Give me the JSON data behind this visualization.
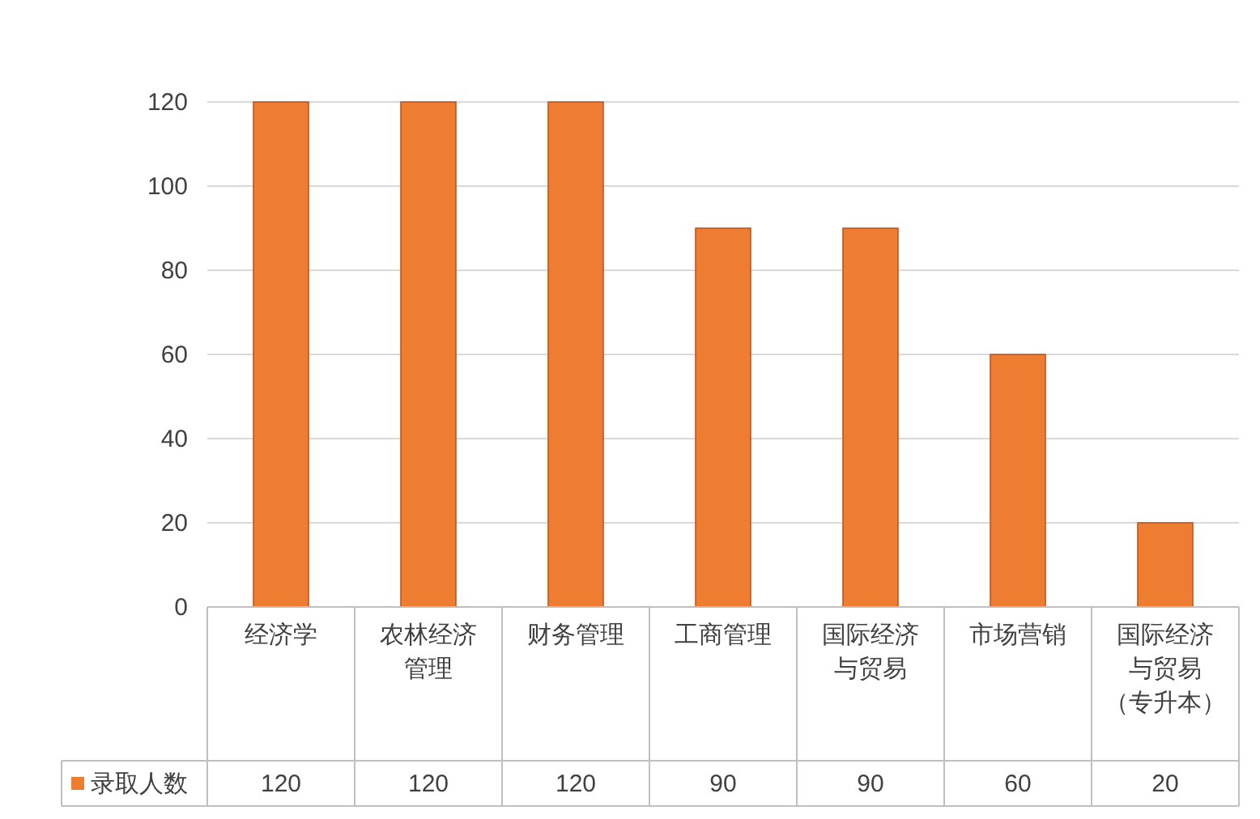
{
  "chart_data": {
    "type": "bar",
    "categories": [
      "经济学",
      "农林经济管理",
      "财务管理",
      "工商管理",
      "国际经济与贸易",
      "市场营销",
      "国际经济与贸易（专升本）"
    ],
    "series": [
      {
        "name": "录取人数",
        "color": "#ee7d32",
        "values": [
          120,
          120,
          120,
          90,
          90,
          60,
          20
        ]
      }
    ],
    "ylim": [
      0,
      120
    ],
    "yticks": [
      0,
      20,
      40,
      60,
      80,
      100,
      120
    ],
    "grid": "y",
    "legend": "bottom",
    "data_labels": true
  }
}
